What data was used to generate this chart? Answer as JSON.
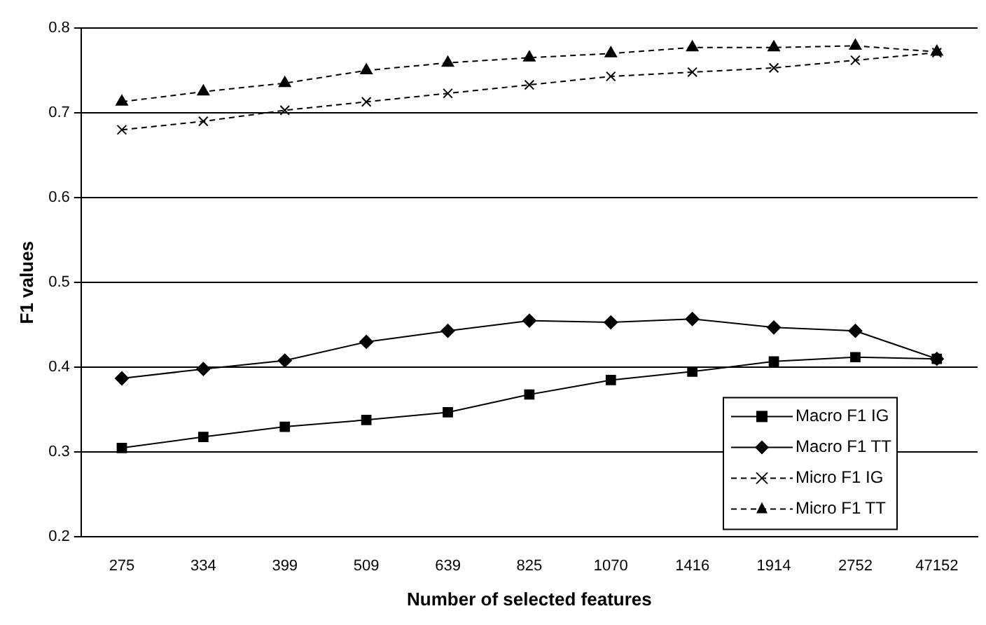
{
  "chart_data": {
    "type": "line",
    "xlabel": "Number of selected features",
    "ylabel": "F1 values",
    "categories": [
      "275",
      "334",
      "399",
      "509",
      "639",
      "825",
      "1070",
      "1416",
      "1914",
      "2752",
      "47152"
    ],
    "series": [
      {
        "name": "Macro F1 IG",
        "color": "#000000",
        "marker": "square",
        "line_style": "solid",
        "values": [
          0.305,
          0.318,
          0.33,
          0.338,
          0.347,
          0.368,
          0.385,
          0.395,
          0.407,
          0.412,
          0.41
        ]
      },
      {
        "name": "Macro F1 TT",
        "color": "#000000",
        "marker": "diamond",
        "line_style": "solid",
        "values": [
          0.387,
          0.398,
          0.408,
          0.43,
          0.443,
          0.455,
          0.453,
          0.457,
          0.447,
          0.443,
          0.41
        ]
      },
      {
        "name": "Micro F1 IG",
        "color": "#000000",
        "marker": "cross",
        "line_style": "dashed",
        "values": [
          0.68,
          0.69,
          0.703,
          0.713,
          0.723,
          0.733,
          0.743,
          0.748,
          0.753,
          0.762,
          0.771
        ]
      },
      {
        "name": "Micro F1 TT",
        "color": "#000000",
        "marker": "triangle",
        "line_style": "dashed",
        "values": [
          0.713,
          0.725,
          0.735,
          0.75,
          0.759,
          0.765,
          0.77,
          0.777,
          0.777,
          0.779,
          0.772
        ]
      }
    ],
    "ylim": [
      0.2,
      0.8
    ],
    "yticks": [
      0.2,
      0.3,
      0.4,
      0.5,
      0.6,
      0.7,
      0.8
    ],
    "grid": "y",
    "legend": "bottom right"
  }
}
